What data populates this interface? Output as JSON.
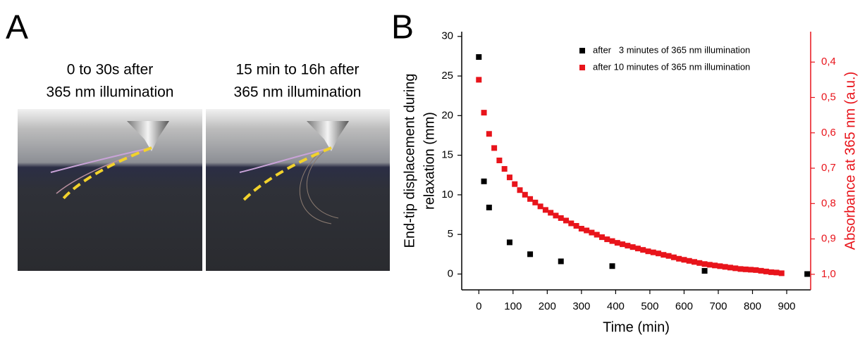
{
  "panel_labels": [
    "A",
    "B"
  ],
  "photo_captions": [
    [
      "0 to 30s after",
      "365 nm illumination"
    ],
    [
      "15 min to 16h after",
      "365 nm illumination"
    ]
  ],
  "chart_data": {
    "type": "scatter",
    "xlabel": "Time (min)",
    "ylabel": [
      "End-tip displacement during",
      "relaxation (mm)"
    ],
    "y2label": "Absorbance at 365 nm (a.u.)",
    "xlim": [
      -50,
      970
    ],
    "xticks": [
      0,
      100,
      200,
      300,
      400,
      500,
      600,
      700,
      800,
      900
    ],
    "ylim": [
      -2,
      30.6
    ],
    "yticks": [
      0,
      5,
      10,
      15,
      20,
      25,
      30
    ],
    "y2lim": [
      1.044,
      0.314
    ],
    "y2_inverted": true,
    "y2ticks": [
      {
        "value": 0.4,
        "label": "0,4"
      },
      {
        "value": 0.5,
        "label": "0,5"
      },
      {
        "value": 0.6,
        "label": "0,6"
      },
      {
        "value": 0.7,
        "label": "0,7"
      },
      {
        "value": 0.8,
        "label": "0,8"
      },
      {
        "value": 0.9,
        "label": "0,9"
      },
      {
        "value": 1.0,
        "label": "1,0"
      }
    ],
    "y2color": "#e8141b",
    "legend": "top-right",
    "series": [
      {
        "name": "after   3 minutes of 365 nm illumination",
        "color": "#000000",
        "x": [
          0,
          15,
          30,
          90,
          150,
          240,
          390,
          660,
          960
        ],
        "values": [
          27.4,
          11.7,
          8.4,
          4.0,
          2.5,
          1.6,
          1.0,
          0.4,
          0.0
        ]
      },
      {
        "name": "after 10 minutes of 365 nm illumination",
        "color": "#e8141b",
        "axis": "y2",
        "x": [
          0,
          15,
          30,
          45,
          60,
          75,
          90,
          105,
          120,
          135,
          150,
          165,
          180,
          195,
          210,
          225,
          240,
          255,
          270,
          285,
          300,
          315,
          330,
          345,
          360,
          375,
          390,
          405,
          420,
          435,
          450,
          465,
          480,
          495,
          510,
          525,
          540,
          555,
          570,
          585,
          600,
          615,
          630,
          645,
          660,
          675,
          690,
          705,
          720,
          735,
          750,
          765,
          780,
          795,
          810,
          825,
          840,
          855,
          870,
          885
        ],
        "values": [
          0.45,
          0.543,
          0.603,
          0.643,
          0.678,
          0.702,
          0.726,
          0.745,
          0.762,
          0.775,
          0.787,
          0.797,
          0.808,
          0.818,
          0.826,
          0.834,
          0.841,
          0.848,
          0.856,
          0.863,
          0.871,
          0.876,
          0.882,
          0.888,
          0.895,
          0.901,
          0.906,
          0.911,
          0.915,
          0.919,
          0.923,
          0.927,
          0.931,
          0.935,
          0.938,
          0.941,
          0.945,
          0.948,
          0.952,
          0.956,
          0.959,
          0.962,
          0.965,
          0.968,
          0.971,
          0.973,
          0.975,
          0.977,
          0.979,
          0.981,
          0.983,
          0.985,
          0.986,
          0.987,
          0.988,
          0.99,
          0.992,
          0.994,
          0.995,
          0.997
        ]
      }
    ]
  }
}
